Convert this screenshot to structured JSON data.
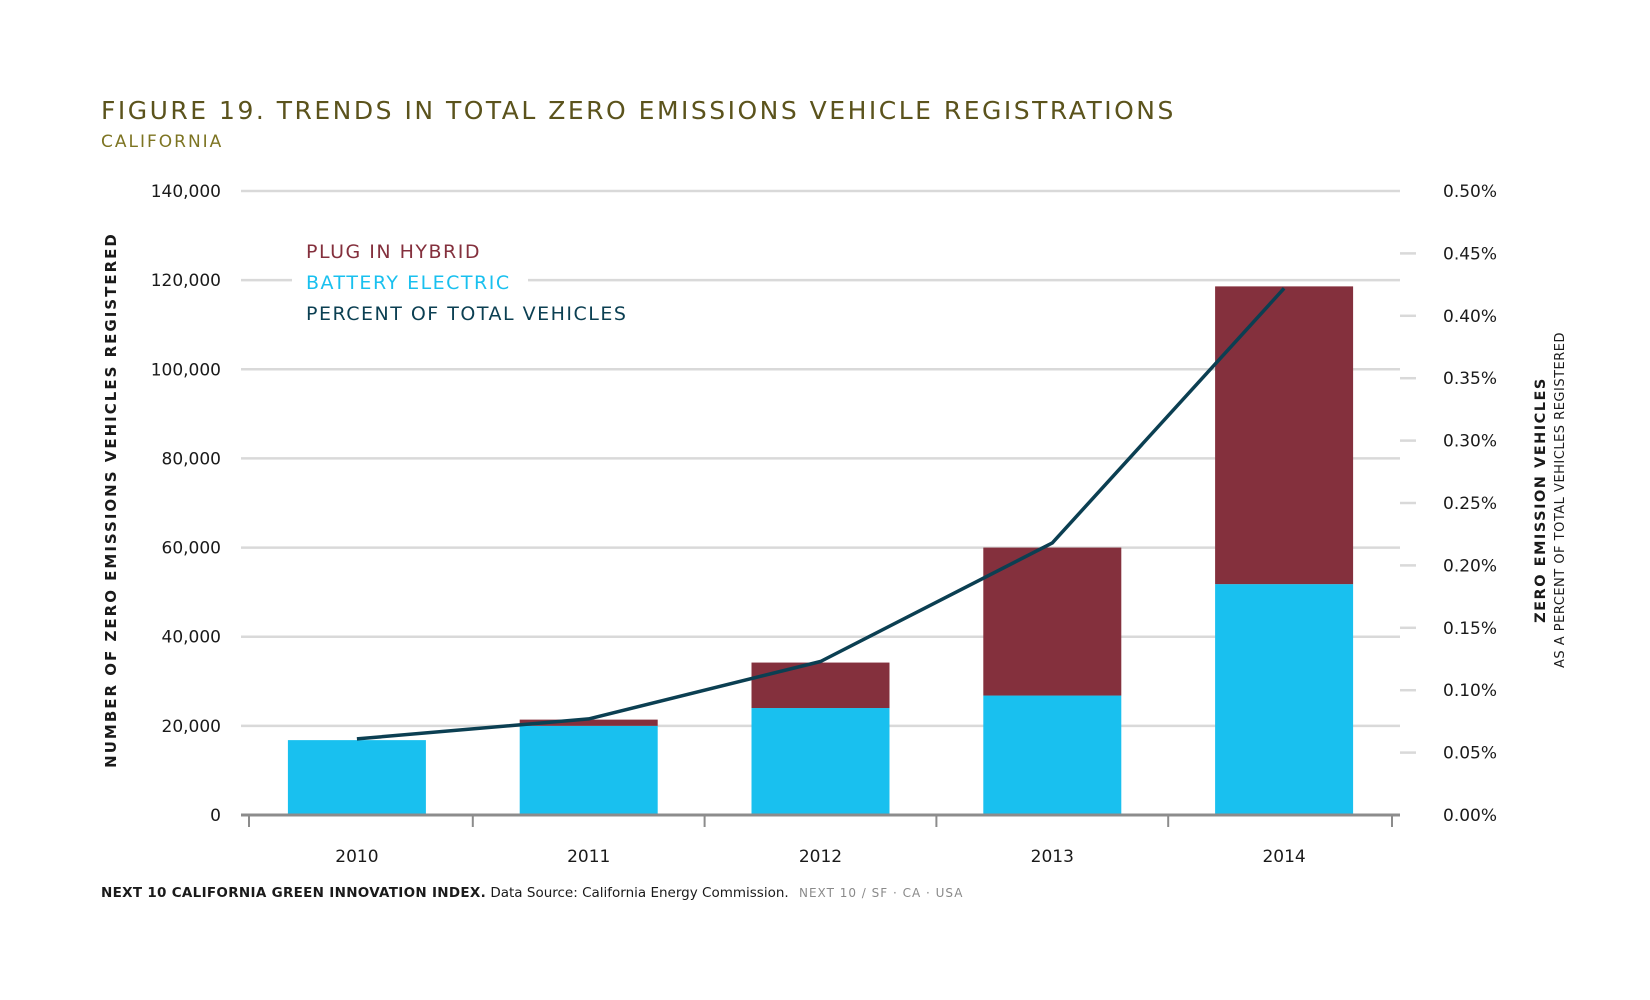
{
  "title": "FIGURE 19. TRENDS IN TOTAL ZERO EMISSIONS VEHICLE REGISTRATIONS",
  "subtitle": "CALIFORNIA",
  "footer": {
    "source_bold": "NEXT 10 CALIFORNIA GREEN INNOVATION INDEX.",
    "source_text": "Data Source: California Energy Commission.",
    "brand": "NEXT 10  /  SF · CA · USA"
  },
  "colors": {
    "plug_in_hybrid": "#84303d",
    "battery_electric": "#19c0ef",
    "percent_line": "#0b3f52",
    "grid": "#d9d9d9",
    "axis": "#8c8c8c",
    "title": "#5b531c"
  },
  "chart_data": {
    "type": "bar",
    "stacked": true,
    "categories": [
      "2010",
      "2011",
      "2012",
      "2013",
      "2014"
    ],
    "series": [
      {
        "name": "BATTERY ELECTRIC",
        "values": [
          16800,
          20000,
          24000,
          26800,
          51800
        ]
      },
      {
        "name": "PLUG IN HYBRID",
        "values": [
          0,
          1400,
          10200,
          33200,
          66800
        ]
      }
    ],
    "line_series": {
      "name": "PERCENT OF TOTAL VEHICLES",
      "axis": "right",
      "values": [
        0.061,
        0.077,
        0.123,
        0.218,
        0.422
      ]
    },
    "legend": [
      "PLUG IN HYBRID",
      "BATTERY ELECTRIC",
      "PERCENT OF TOTAL VEHICLES"
    ],
    "legend_position": "top-left",
    "ylabel": "NUMBER OF ZERO EMISSIONS VEHICLES REGISTERED",
    "y2label": [
      "ZERO EMISSION VEHICLES",
      "AS A PERCENT OF TOTAL VEHICLES REGISTERED"
    ],
    "ylim": [
      0,
      140000
    ],
    "y2lim": [
      0,
      0.5
    ],
    "yticks": [
      0,
      20000,
      40000,
      60000,
      80000,
      100000,
      120000,
      140000
    ],
    "ytick_labels": [
      "0",
      "20,000",
      "40,000",
      "60,000",
      "80,000",
      "100,000",
      "120,000",
      "140,000"
    ],
    "y2ticks": [
      0,
      0.05,
      0.1,
      0.15,
      0.2,
      0.25,
      0.3,
      0.35,
      0.4,
      0.45,
      0.5
    ],
    "y2tick_labels": [
      "0.00%",
      "0.05%",
      "0.10%",
      "0.15%",
      "0.20%",
      "0.25%",
      "0.30%",
      "0.35%",
      "0.40%",
      "0.45%",
      "0.50%"
    ],
    "grid": true
  }
}
